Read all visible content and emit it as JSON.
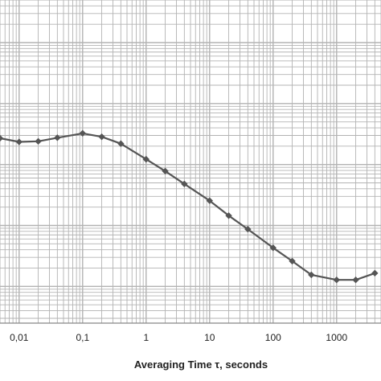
{
  "chart_data": {
    "type": "line",
    "title": "",
    "xlabel": "Averaging Time τ, seconds",
    "ylabel": "",
    "x_scale": "log",
    "y_scale": "log",
    "xlim": [
      0.005,
      5000
    ],
    "ylim": [
      0.0025,
      500
    ],
    "grid": true,
    "x_tick_labels": [
      {
        "value": 0.01,
        "label": "0,01"
      },
      {
        "value": 0.1,
        "label": "0,1"
      },
      {
        "value": 1,
        "label": "1"
      },
      {
        "value": 10,
        "label": "10"
      },
      {
        "value": 100,
        "label": "100"
      },
      {
        "value": 1000,
        "label": "1000"
      }
    ],
    "colors": {
      "line": "#555555",
      "marker": "#555555",
      "grid": "#b3b3b3"
    },
    "series": [
      {
        "x": [
          0.005,
          0.01,
          0.02,
          0.04,
          0.1,
          0.2,
          0.4,
          1,
          2,
          4,
          10,
          20,
          40,
          100,
          200,
          400,
          1000,
          2000,
          4000
        ],
        "y": [
          2.7,
          2.35,
          2.4,
          2.75,
          3.25,
          2.85,
          2.2,
          1.22,
          0.78,
          0.48,
          0.255,
          0.145,
          0.087,
          0.043,
          0.026,
          0.0155,
          0.0128,
          0.0128,
          0.0165
        ]
      }
    ]
  }
}
